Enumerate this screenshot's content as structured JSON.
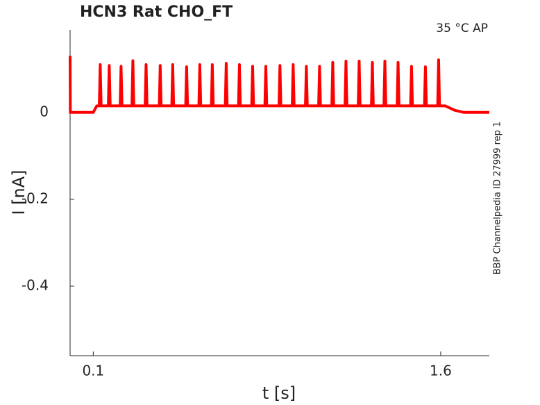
{
  "chart_data": {
    "type": "line",
    "title": "HCN3  Rat  CHO_FT",
    "annotation": "35 °C  AP",
    "side_note": "BBP Channelpedia ID 27999 rep 1",
    "xlabel": "t [s]",
    "ylabel": "I [nA]",
    "xlim": [
      0,
      1.81
    ],
    "ylim": [
      -0.56,
      0.19
    ],
    "xticks": [
      0.1,
      1.6
    ],
    "yticks": [
      0,
      -0.2,
      -0.4
    ],
    "grid": false,
    "series": [
      {
        "name": "I",
        "color": "#ff0000",
        "x": [
          0,
          0.001,
          0.003,
          0.1,
          0.115,
          0.126,
          0.13,
          0.134,
          0.165,
          0.169,
          0.173,
          0.216,
          0.22,
          0.224,
          0.267,
          0.271,
          0.275,
          0.324,
          0.328,
          0.332,
          0.385,
          0.389,
          0.393,
          0.439,
          0.443,
          0.447,
          0.499,
          0.503,
          0.507,
          0.556,
          0.56,
          0.564,
          0.61,
          0.614,
          0.618,
          0.67,
          0.674,
          0.678,
          0.727,
          0.731,
          0.735,
          0.784,
          0.788,
          0.792,
          0.841,
          0.845,
          0.849,
          0.902,
          0.906,
          0.91,
          0.959,
          0.963,
          0.967,
          1.016,
          1.02,
          1.024,
          1.073,
          1.077,
          1.081,
          1.13,
          1.134,
          1.138,
          1.187,
          1.191,
          1.195,
          1.244,
          1.248,
          1.252,
          1.301,
          1.305,
          1.309,
          1.355,
          1.359,
          1.363,
          1.412,
          1.416,
          1.42,
          1.47,
          1.474,
          1.478,
          1.53,
          1.534,
          1.538,
          1.587,
          1.591,
          1.595,
          1.62,
          1.66,
          1.7,
          1.81
        ],
        "values": [
          0.13,
          0,
          0,
          0,
          0.015,
          0.015,
          0.11,
          0.015,
          0.015,
          0.108,
          0.015,
          0.015,
          0.106,
          0.015,
          0.015,
          0.119,
          0.015,
          0.015,
          0.11,
          0.015,
          0.015,
          0.108,
          0.015,
          0.015,
          0.11,
          0.015,
          0.015,
          0.105,
          0.015,
          0.015,
          0.11,
          0.015,
          0.015,
          0.11,
          0.015,
          0.015,
          0.113,
          0.015,
          0.015,
          0.11,
          0.015,
          0.015,
          0.106,
          0.015,
          0.015,
          0.106,
          0.015,
          0.015,
          0.108,
          0.015,
          0.015,
          0.11,
          0.015,
          0.015,
          0.106,
          0.015,
          0.015,
          0.106,
          0.015,
          0.015,
          0.115,
          0.015,
          0.015,
          0.118,
          0.015,
          0.015,
          0.118,
          0.015,
          0.015,
          0.115,
          0.015,
          0.015,
          0.118,
          0.015,
          0.015,
          0.115,
          0.015,
          0.015,
          0.106,
          0.015,
          0.015,
          0.105,
          0.015,
          0.015,
          0.121,
          0.015,
          0.015,
          0.005,
          0,
          0
        ]
      }
    ]
  }
}
